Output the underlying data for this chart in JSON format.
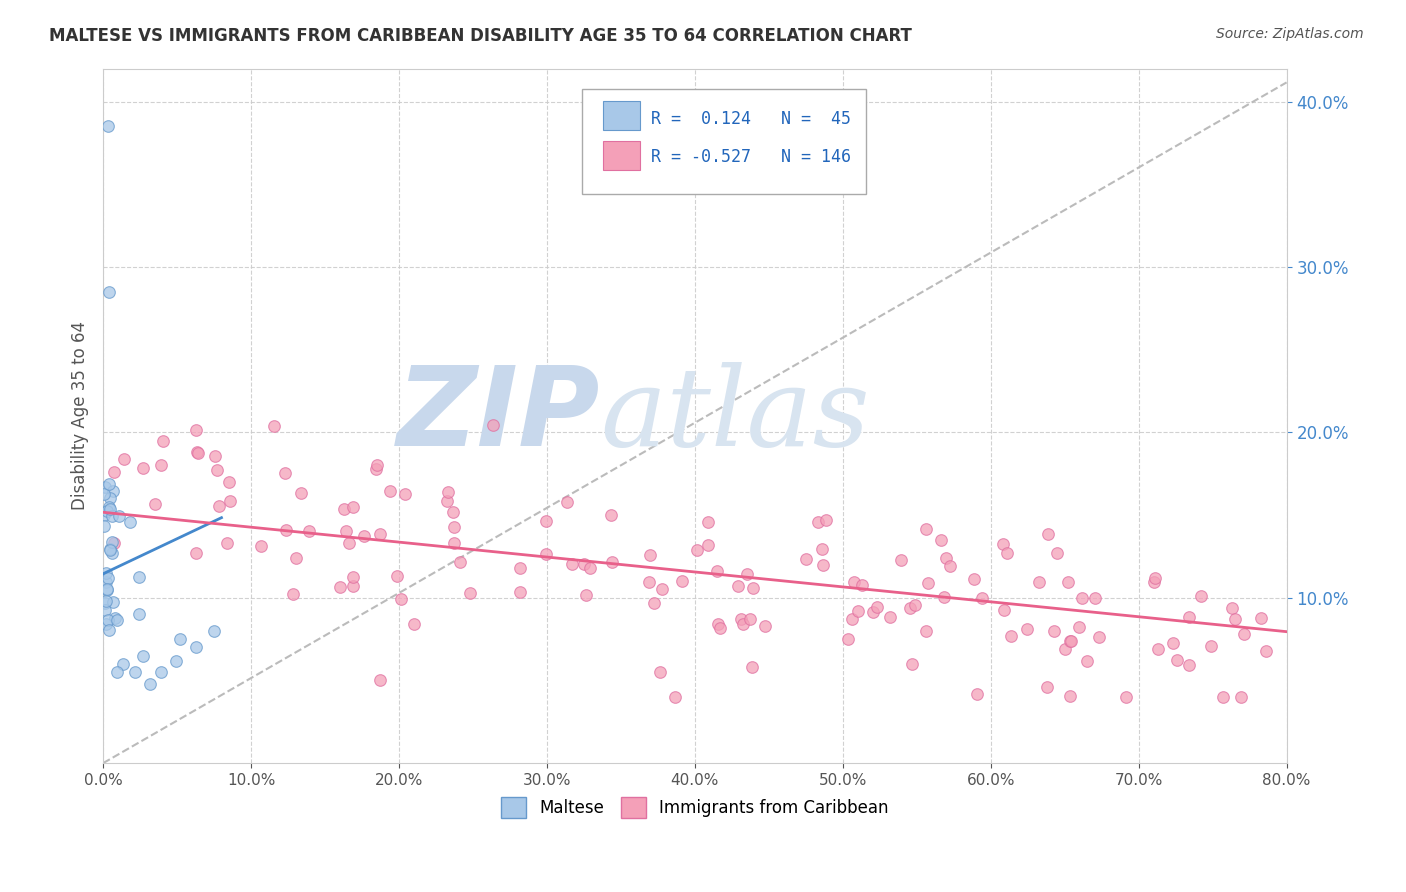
{
  "title": "MALTESE VS IMMIGRANTS FROM CARIBBEAN DISABILITY AGE 35 TO 64 CORRELATION CHART",
  "source": "Source: ZipAtlas.com",
  "ylabel": "Disability Age 35 to 64",
  "legend1_label": "Maltese",
  "legend2_label": "Immigrants from Caribbean",
  "R1": 0.124,
  "N1": 45,
  "R2": -0.527,
  "N2": 146,
  "blue_color": "#a8c8e8",
  "pink_color": "#f4a0b8",
  "blue_line_color": "#4488cc",
  "pink_line_color": "#e8608a",
  "gray_dash_color": "#bbbbbb",
  "tick_label_color": "#4488cc",
  "watermark_color": "#c8d8ec",
  "xmin": 0.0,
  "xmax": 0.8,
  "ymin": 0.0,
  "ymax": 0.42,
  "ytick_right_labels": [
    "10.0%",
    "20.0%",
    "30.0%",
    "40.0%"
  ],
  "ytick_values": [
    0.1,
    0.2,
    0.3,
    0.4
  ],
  "xtick_values": [
    0.0,
    0.1,
    0.2,
    0.3,
    0.4,
    0.5,
    0.6,
    0.7,
    0.8
  ],
  "blue_seed": 42,
  "pink_seed": 99
}
